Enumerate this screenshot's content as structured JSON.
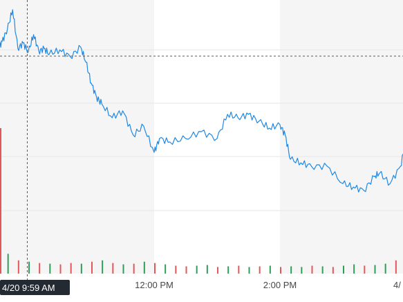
{
  "chart_data": {
    "type": "line",
    "x_axis": {
      "tick_labels": [
        "12:00 PM",
        "2:00 PM",
        "4/"
      ],
      "tick_times": [
        "12:00",
        "14:00",
        "16:00"
      ]
    },
    "y_axis": {
      "visible_tick_labels": false
    },
    "grid": true,
    "shaded_sessions": [
      "9:30-12:00",
      "14:00-16:00"
    ],
    "crosshair": {
      "label": "4/20 9:59 AM",
      "time": "09:59"
    },
    "colors": {
      "line": "#1e88e5",
      "volume_up": "#2e9d5a",
      "volume_down": "#e0585a",
      "grid": "#e6e6e6",
      "shade": "#f5f5f5",
      "crosshair": "#555555"
    },
    "series": [
      {
        "time": [
          "09:31",
          "09:35",
          "09:40",
          "09:45",
          "09:50",
          "09:55",
          "10:00",
          "10:05",
          "10:10",
          "10:15",
          "10:20",
          "10:30",
          "10:40",
          "10:50",
          "10:55",
          "11:00",
          "11:05",
          "11:10",
          "11:20",
          "11:30",
          "11:40",
          "11:50",
          "12:00",
          "12:05",
          "12:15",
          "12:30",
          "12:45",
          "13:00",
          "13:10",
          "13:20",
          "13:30",
          "13:40",
          "13:50",
          "14:00",
          "14:05",
          "14:10",
          "14:20",
          "14:30",
          "14:45",
          "15:00",
          "15:10",
          "15:20",
          "15:30",
          "15:35",
          "15:45",
          "15:55",
          "16:00"
        ],
        "price": [
          70,
          60,
          42,
          14,
          70,
          62,
          75,
          50,
          74,
          70,
          78,
          72,
          82,
          68,
          90,
          120,
          140,
          150,
          170,
          160,
          195,
          182,
          220,
          200,
          205,
          200,
          190,
          200,
          165,
          170,
          165,
          175,
          185,
          180,
          195,
          230,
          235,
          240,
          240,
          265,
          270,
          275,
          255,
          250,
          265,
          240,
          205
        ]
      }
    ],
    "volume": {
      "time": [
        "09:30",
        "09:40",
        "09:50",
        "10:00",
        "10:10",
        "10:20",
        "10:30",
        "10:40",
        "10:50",
        "11:00",
        "11:10",
        "11:20",
        "11:30",
        "11:40",
        "11:50",
        "12:00",
        "12:10",
        "12:20",
        "12:30",
        "12:40",
        "12:50",
        "13:00",
        "13:10",
        "13:20",
        "13:30",
        "13:40",
        "13:50",
        "14:00",
        "14:10",
        "14:20",
        "14:30",
        "14:40",
        "14:50",
        "15:00",
        "15:10",
        "15:20",
        "15:30",
        "15:40",
        "15:50",
        "16:00"
      ],
      "values": [
        220,
        30,
        20,
        18,
        16,
        15,
        14,
        16,
        15,
        18,
        20,
        16,
        14,
        15,
        18,
        16,
        14,
        12,
        11,
        12,
        13,
        10,
        11,
        12,
        10,
        11,
        12,
        10,
        11,
        10,
        12,
        11,
        10,
        12,
        14,
        12,
        13,
        15,
        20,
        30
      ],
      "direction": [
        "down",
        "up",
        "down",
        "up",
        "down",
        "up",
        "down",
        "down",
        "up",
        "down",
        "up",
        "down",
        "up",
        "down",
        "up",
        "down",
        "up",
        "down",
        "down",
        "up",
        "up",
        "down",
        "up",
        "down",
        "up",
        "down",
        "up",
        "down",
        "up",
        "up",
        "down",
        "up",
        "down",
        "up",
        "up",
        "down",
        "up",
        "up",
        "down",
        "up"
      ]
    }
  }
}
